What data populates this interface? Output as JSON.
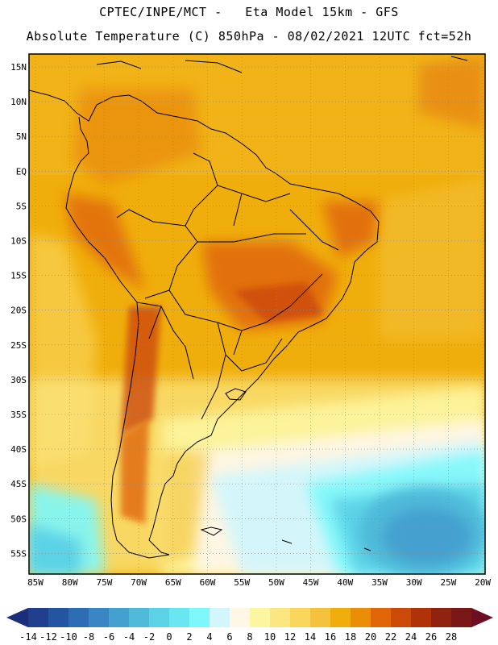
{
  "header": {
    "line1": "CPTEC/INPE/MCT -   Eta Model 15km - GFS",
    "line2": "Absolute Temperature (C) 850hPa - 08/02/2021 12UTC fct=52h"
  },
  "axes": {
    "lat_labels": [
      "15N",
      "10N",
      "5N",
      "EQ",
      "5S",
      "10S",
      "15S",
      "20S",
      "25S",
      "30S",
      "35S",
      "40S",
      "45S",
      "50S",
      "55S"
    ],
    "lon_labels": [
      "85W",
      "80W",
      "75W",
      "70W",
      "65W",
      "60W",
      "55W",
      "50W",
      "45W",
      "40W",
      "35W",
      "30W",
      "25W",
      "20W"
    ]
  },
  "colorbar": {
    "tick_labels": [
      "-14",
      "-12",
      "-10",
      "-8",
      "-6",
      "-4",
      "-2",
      "0",
      "2",
      "4",
      "6",
      "8",
      "10",
      "12",
      "14",
      "16",
      "18",
      "20",
      "22",
      "24",
      "26",
      "28"
    ],
    "colors": [
      "#20408f",
      "#2455a1",
      "#2e6cb3",
      "#3a86c4",
      "#44a0cf",
      "#50bad9",
      "#5cd2e6",
      "#6ae6f0",
      "#7ef8fa",
      "#d2f6fc",
      "#fff7e6",
      "#fdf6a0",
      "#fbe680",
      "#f9d65c",
      "#f4c23c",
      "#f0ae0c",
      "#ea8e08",
      "#e06608",
      "#cc4a08",
      "#b03208",
      "#8f2310",
      "#7a1818"
    ],
    "left_arrow_color": "#1a2e7a",
    "right_arrow_color": "#6e0e22"
  }
}
